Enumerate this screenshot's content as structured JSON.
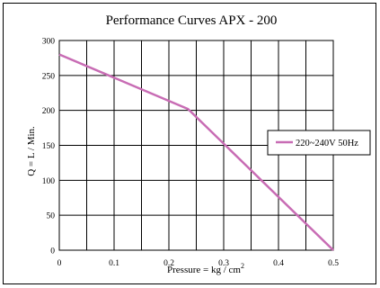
{
  "chart_data": {
    "type": "line",
    "title": "Performance  Curves  APX - 200",
    "xlabel": "Pressure = kg / cm",
    "xlabel_sup": "2",
    "ylabel": "Q = L / Min.",
    "xlim": [
      0,
      0.5
    ],
    "ylim": [
      0,
      300
    ],
    "x_ticks": [
      "0",
      "0.1",
      "0.2",
      "0.3",
      "0.4",
      "0.5"
    ],
    "y_ticks": [
      "300",
      "250",
      "200",
      "150",
      "100",
      "50",
      "0"
    ],
    "x_tick_values": [
      0,
      0.1,
      0.2,
      0.3,
      0.4,
      0.5
    ],
    "y_tick_values": [
      300,
      250,
      200,
      150,
      100,
      50,
      0
    ],
    "x_grid": [
      0,
      0.05,
      0.1,
      0.15,
      0.2,
      0.25,
      0.3,
      0.35,
      0.4,
      0.45,
      0.5
    ],
    "y_grid": [
      0,
      50,
      100,
      150,
      200,
      250,
      300
    ],
    "grid": true,
    "legend_position": "right",
    "series": [
      {
        "name": "220~240V 50Hz",
        "color": "#c86cb4",
        "points": [
          [
            0,
            280
          ],
          [
            0.235,
            202
          ],
          [
            0.5,
            0
          ]
        ]
      }
    ]
  }
}
